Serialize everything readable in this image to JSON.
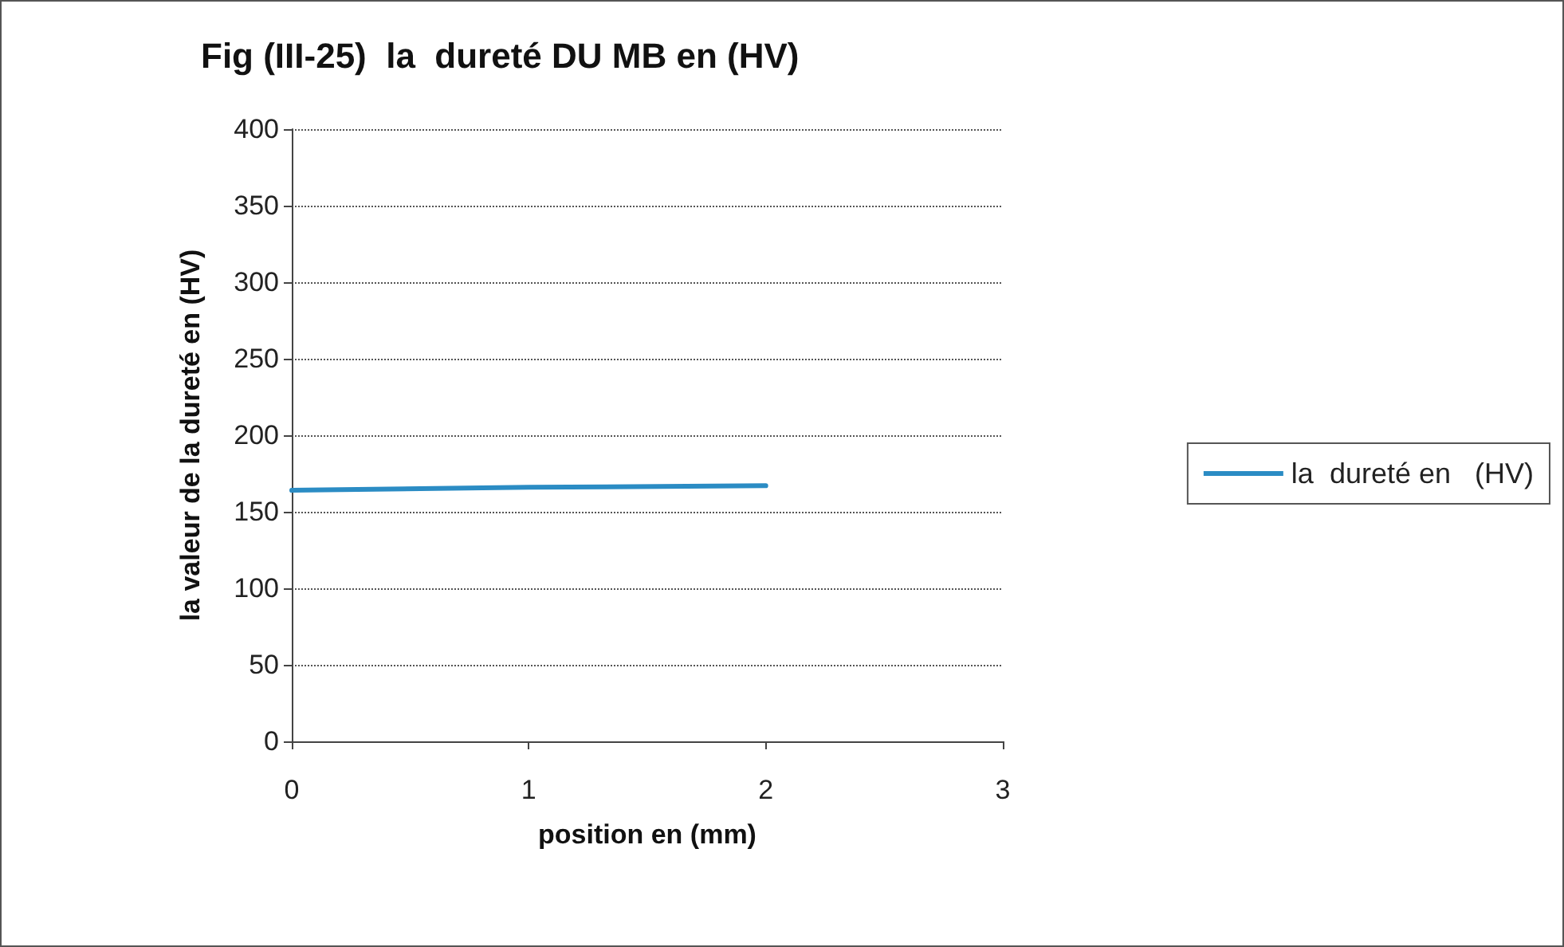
{
  "chart_data": {
    "type": "line",
    "title": "Fig (III-25)  la  dureté DU MB en (HV)",
    "xlabel": "position en (mm)",
    "ylabel": "la valeur de la dureté en (HV)",
    "x": [
      0,
      1,
      2
    ],
    "series": [
      {
        "name": "la  dureté en   (HV)",
        "color": "#2b8cc4",
        "values": [
          164,
          166,
          167
        ]
      }
    ],
    "xlim": [
      0,
      3
    ],
    "xticks": [
      0,
      1,
      2,
      3
    ],
    "ylim": [
      0,
      400
    ],
    "yticks": [
      0,
      50,
      100,
      150,
      200,
      250,
      300,
      350,
      400
    ],
    "grid": "y",
    "legend": "right",
    "marker": "none",
    "line_style": "solid"
  }
}
